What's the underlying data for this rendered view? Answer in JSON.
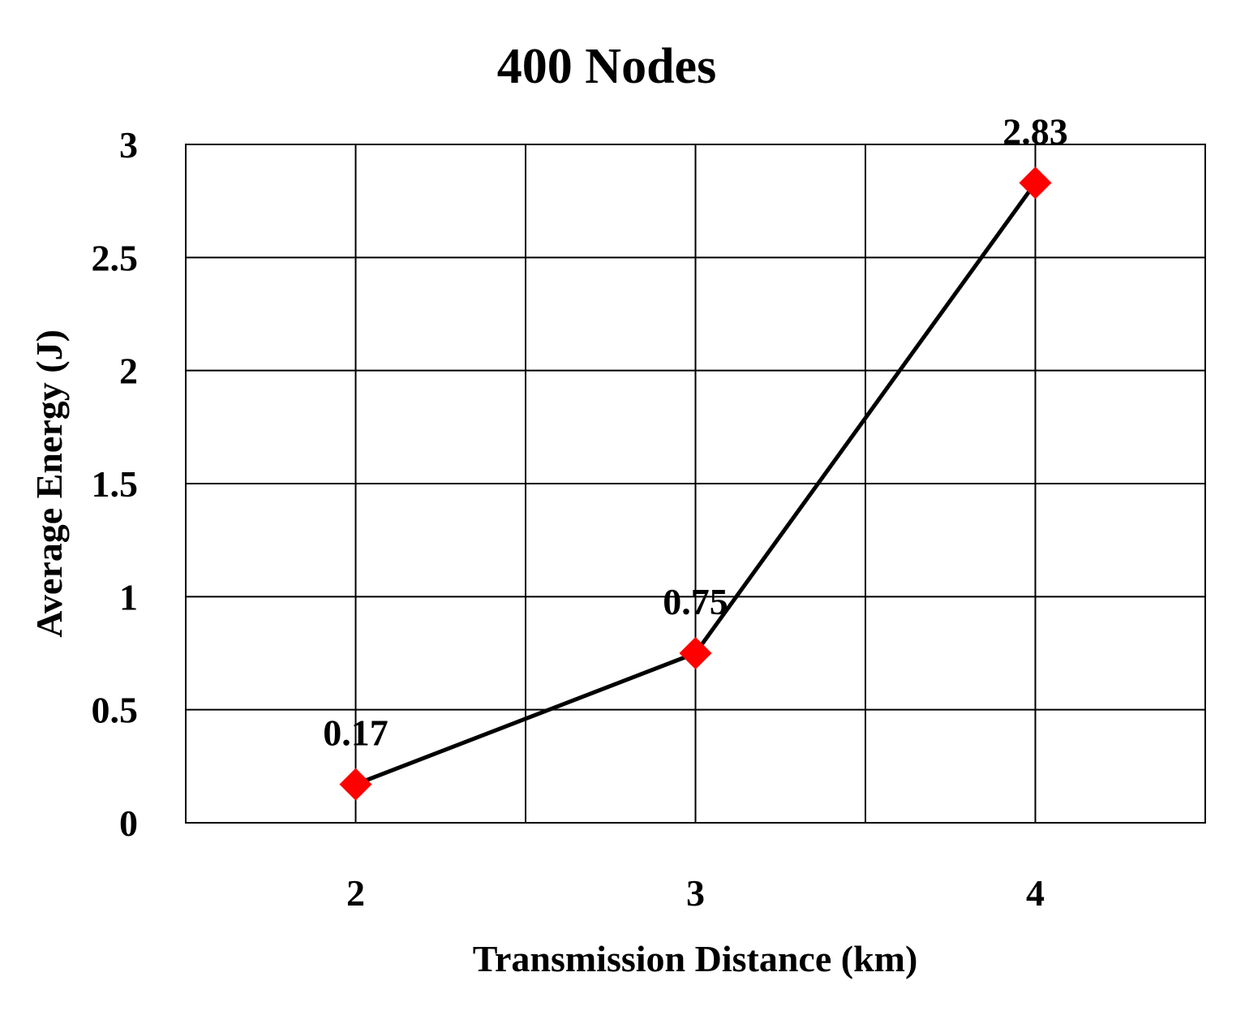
{
  "chart_data": {
    "type": "line",
    "title": "400 Nodes",
    "xlabel": "Transmission Distance (km)",
    "ylabel": "Average Energy (J)",
    "x": [
      2,
      3,
      4
    ],
    "series": [
      {
        "values": [
          0.17,
          0.75,
          2.83
        ],
        "labels": [
          "0.17",
          "0.75",
          "2.83"
        ]
      }
    ],
    "xlim": [
      1.5,
      4.5
    ],
    "ylim": [
      0,
      3
    ],
    "xticks": [
      "2",
      "3",
      "4"
    ],
    "yticks": [
      "0",
      "0.5",
      "1",
      "1.5",
      "2",
      "2.5",
      "3"
    ],
    "grid": true,
    "legend": "none",
    "colors": {
      "line": "#000000",
      "marker": "#ff0000"
    }
  }
}
